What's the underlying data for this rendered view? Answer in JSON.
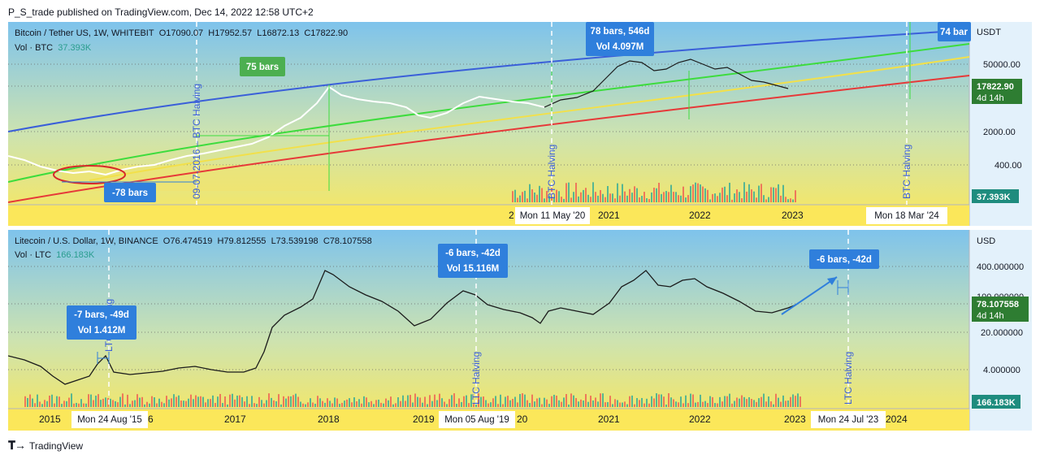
{
  "header": {
    "publisher": "P_S_trade published on TradingView.com, Dec 14, 2022 12:58 UTC+2"
  },
  "footer": {
    "brand": "TradingView"
  },
  "colors": {
    "blue_curve": "#3a5fd9",
    "green_curve": "#3ddc3d",
    "yellow_curve": "#f2e04a",
    "red_curve": "#e63939",
    "label_blue": "#2f7fdc",
    "label_green": "#4caf50",
    "price_green": "#2e7d32"
  },
  "chart_data": [
    {
      "type": "line",
      "symbol_line": "Bitcoin / Tether US, 1W, WHITEBIT",
      "ohlc": [
        "O17090.07",
        "H17952.57",
        "L16872.13",
        "C17822.90"
      ],
      "volume_label": "Vol · BTC",
      "volume_value": "37.393K",
      "currency": "USDT",
      "y_scale": "log",
      "y_ticks": [
        "50000.00",
        "2000.00",
        "400.00"
      ],
      "x_ticks": [
        "2021",
        "2022",
        "2023"
      ],
      "x_partial_tick": "2",
      "last_price": "17822.90",
      "countdown": "4d 14h",
      "volume_badge": "37.393K",
      "vertical_labels": [
        "09-07-2016 – BTC Halving",
        "BTC Halving",
        "BTC Halving"
      ],
      "date_labels": [
        "Mon 11 May '20",
        "Mon 18 Mar '24"
      ],
      "annotations": [
        {
          "text": "75 bars",
          "color": "green"
        },
        {
          "text": "-78 bars",
          "color": "blue"
        },
        {
          "text": "78 bars, 546d",
          "subtext": "Vol 4.097M",
          "color": "blue"
        },
        {
          "text": "74 bar",
          "color": "blue"
        }
      ]
    },
    {
      "type": "line",
      "symbol_line": "Litecoin / U.S. Dollar, 1W, BINANCE",
      "ohlc": [
        "O76.474519",
        "H79.812555",
        "L73.539198",
        "C78.107558"
      ],
      "volume_label": "Vol · LTC",
      "volume_value": "166.183K",
      "currency": "USD",
      "y_scale": "log",
      "y_ticks": [
        "400.000000",
        "20.000000",
        "4.000000"
      ],
      "y_partial_tick": "100.000000",
      "x_ticks": [
        "2015",
        "6",
        "2017",
        "2018",
        "2019",
        "20",
        "2021",
        "2022",
        "2023",
        "2024"
      ],
      "last_price": "78.107558",
      "countdown": "4d 14h",
      "volume_badge": "166.183K",
      "vertical_labels": [
        "LTC Halving",
        "LTC Halving",
        "LTC Halving"
      ],
      "date_labels": [
        "Mon 24 Aug '15",
        "Mon 05 Aug '19",
        "Mon 24 Jul '23"
      ],
      "annotations": [
        {
          "text": "-7 bars, -49d",
          "subtext": "Vol 1.412M",
          "color": "blue"
        },
        {
          "text": "-6 bars, -42d",
          "subtext": "Vol 15.116M",
          "color": "blue"
        },
        {
          "text": "-6 bars, -42d",
          "color": "blue"
        }
      ]
    }
  ]
}
